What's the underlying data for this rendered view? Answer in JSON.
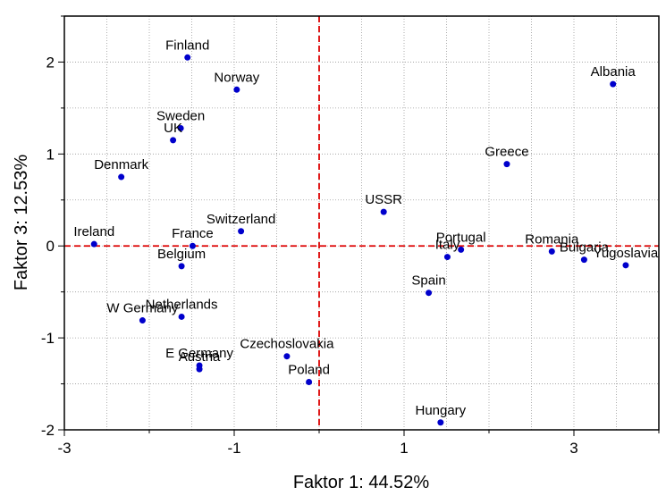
{
  "chart_data": {
    "type": "scatter",
    "title": "",
    "xlabel": "Faktor 1: 44.52%",
    "ylabel": "Faktor 3: 12.53%",
    "xlim": [
      -3,
      4
    ],
    "ylim": [
      -2,
      2.5
    ],
    "xticks": [
      -3,
      -1,
      1,
      3
    ],
    "yticks": [
      -2,
      -1,
      0,
      1,
      2
    ],
    "grid": true,
    "reference_lines": {
      "x": 0,
      "y": 0,
      "color": "#dd0000",
      "style": "dashed"
    },
    "colors": {
      "point": "#0000cc",
      "axis": "#000000",
      "grid": "#9a9a9a",
      "reference": "#dd0000"
    },
    "points": [
      {
        "label": "Finland",
        "x": -1.55,
        "y": 2.05
      },
      {
        "label": "Norway",
        "x": -0.97,
        "y": 1.7
      },
      {
        "label": "Sweden",
        "x": -1.63,
        "y": 1.28
      },
      {
        "label": "UK",
        "x": -1.72,
        "y": 1.15
      },
      {
        "label": "Denmark",
        "x": -2.33,
        "y": 0.75
      },
      {
        "label": "Ireland",
        "x": -2.65,
        "y": 0.02
      },
      {
        "label": "France",
        "x": -1.49,
        "y": 0.0
      },
      {
        "label": "Belgium",
        "x": -1.62,
        "y": -0.22
      },
      {
        "label": "Switzerland",
        "x": -0.92,
        "y": 0.16
      },
      {
        "label": "Netherlands",
        "x": -1.62,
        "y": -0.77
      },
      {
        "label": "W Germany",
        "x": -2.08,
        "y": -0.81
      },
      {
        "label": "E Germany",
        "x": -1.41,
        "y": -1.3
      },
      {
        "label": "Austria",
        "x": -1.41,
        "y": -1.34
      },
      {
        "label": "Czechoslovakia",
        "x": -0.38,
        "y": -1.2
      },
      {
        "label": "Poland",
        "x": -0.12,
        "y": -1.48
      },
      {
        "label": "USSR",
        "x": 0.76,
        "y": 0.37
      },
      {
        "label": "Greece",
        "x": 2.21,
        "y": 0.89
      },
      {
        "label": "Albania",
        "x": 3.46,
        "y": 1.76
      },
      {
        "label": "Portugal",
        "x": 1.67,
        "y": -0.04
      },
      {
        "label": "Italy",
        "x": 1.51,
        "y": -0.12
      },
      {
        "label": "Spain",
        "x": 1.29,
        "y": -0.51
      },
      {
        "label": "Romania",
        "x": 2.74,
        "y": -0.06
      },
      {
        "label": "Bulgaria",
        "x": 3.12,
        "y": -0.15
      },
      {
        "label": "Yugoslavia",
        "x": 3.61,
        "y": -0.21
      },
      {
        "label": "Hungary",
        "x": 1.43,
        "y": -1.92
      }
    ]
  }
}
